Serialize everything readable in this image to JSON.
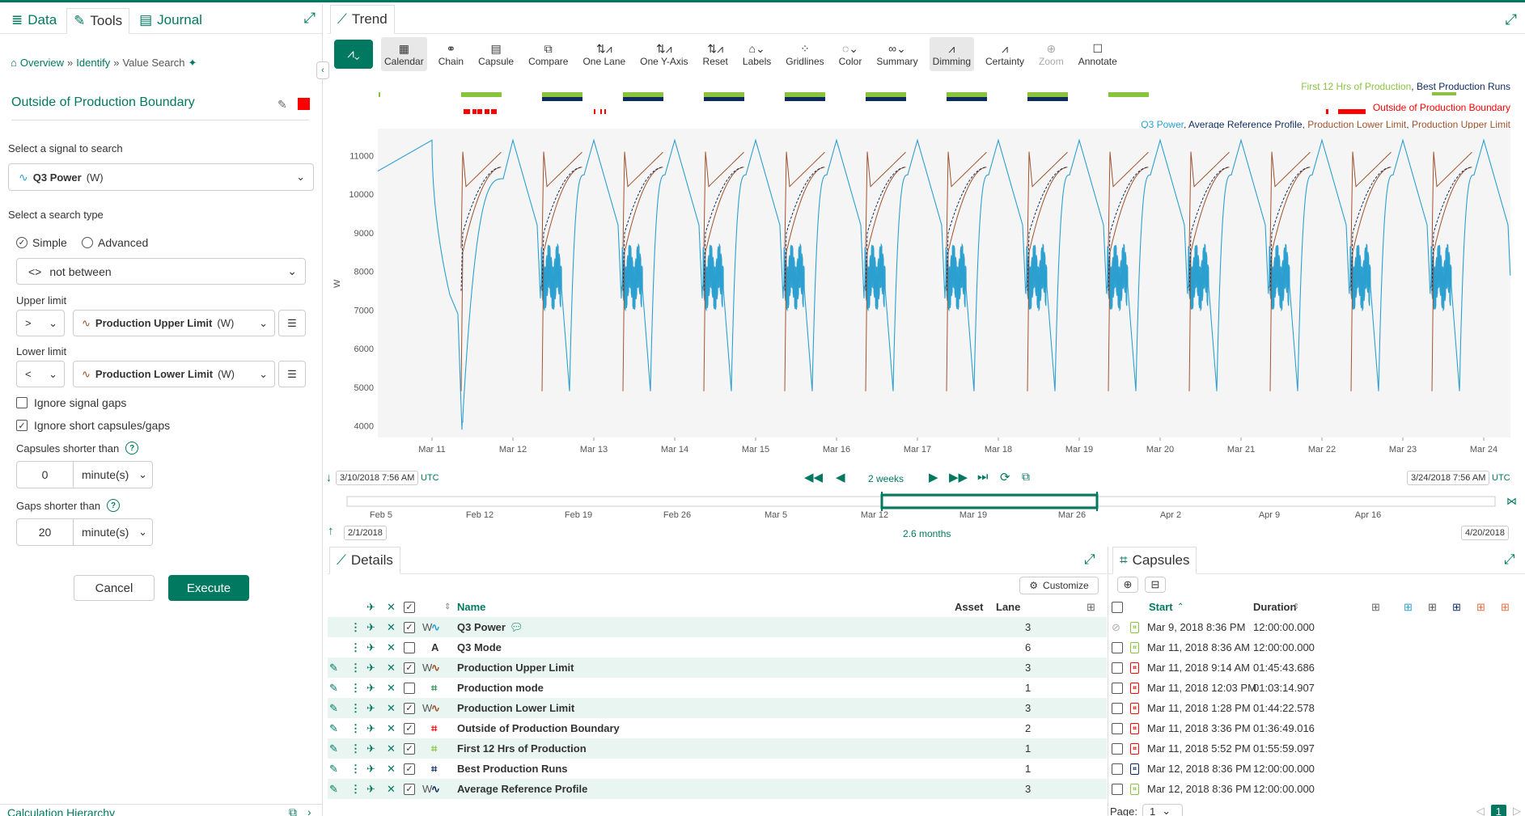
{
  "left_panel": {
    "tabs": [
      {
        "label": "Data",
        "icon": "database-icon"
      },
      {
        "label": "Tools",
        "icon": "wrench-icon"
      },
      {
        "label": "Journal",
        "icon": "journal-icon"
      }
    ],
    "breadcrumb": {
      "overview": "Overview",
      "identify": "Identify",
      "current": "Value Search"
    },
    "title": "Outside of Production Boundary",
    "title_color": "#ff0000",
    "signal_label": "Select a signal to search",
    "signal_name": "Q3 Power",
    "signal_unit": "(W)",
    "search_type_label": "Select a search type",
    "simple_label": "Simple",
    "advanced_label": "Advanced",
    "operator_symbol": "<>",
    "operator_text": "not between",
    "upper_label": "Upper limit",
    "upper_op": ">",
    "upper_signal": "Production Upper Limit",
    "upper_unit": "(W)",
    "lower_label": "Lower limit",
    "lower_op": "<",
    "lower_signal": "Production Lower Limit",
    "lower_unit": "(W)",
    "ignore_gaps": "Ignore signal gaps",
    "ignore_short": "Ignore short capsules/gaps",
    "caps_shorter": "Capsules shorter than",
    "caps_value": "0",
    "caps_unit": "minute(s)",
    "gaps_shorter": "Gaps shorter than",
    "gaps_value": "20",
    "gaps_unit": "minute(s)",
    "cancel": "Cancel",
    "execute": "Execute",
    "calc_hierarchy": "Calculation Hierarchy"
  },
  "trend": {
    "title": "Trend",
    "toolbar": [
      {
        "label": "Calendar",
        "icon": "calendar-icon",
        "state": "on"
      },
      {
        "label": "Chain",
        "icon": "chain-icon",
        "state": ""
      },
      {
        "label": "Capsule",
        "icon": "capsule-icon",
        "state": ""
      },
      {
        "label": "Compare",
        "icon": "compare-icon",
        "state": ""
      },
      {
        "label": "One Lane",
        "icon": "one-lane-icon",
        "state": ""
      },
      {
        "label": "One Y-Axis",
        "icon": "one-y-axis-icon",
        "state": ""
      },
      {
        "label": "Reset",
        "icon": "reset-icon",
        "state": ""
      },
      {
        "label": "Labels",
        "icon": "labels-icon",
        "state": ""
      },
      {
        "label": "Gridlines",
        "icon": "gridlines-icon",
        "state": ""
      },
      {
        "label": "Color",
        "icon": "color-icon",
        "state": ""
      },
      {
        "label": "Summary",
        "icon": "summary-icon",
        "state": ""
      },
      {
        "label": "Dimming",
        "icon": "dimming-icon",
        "state": "on"
      },
      {
        "label": "Certainty",
        "icon": "certainty-icon",
        "state": ""
      },
      {
        "label": "Zoom",
        "icon": "zoom-icon",
        "state": "dis"
      },
      {
        "label": "Annotate",
        "icon": "annotate-icon",
        "state": ""
      }
    ],
    "legend_caps_a": "First 12 Hrs of Production",
    "legend_caps_b": "Best Production Runs",
    "legend_caps_c": "Outside of Production Boundary",
    "legend_signals": [
      "Q3 Power",
      "Average Reference Profile",
      "Production Lower Limit",
      "Production Upper Limit"
    ],
    "start_time": "3/10/2018 7:56 AM",
    "end_time": "3/24/2018 7:56 AM",
    "tz": "UTC",
    "duration": "2 weeks",
    "nav_start": "2/1/2018",
    "nav_end": "4/20/2018",
    "nav_span": "2.6 months",
    "nav_ticks": [
      "Feb 5",
      "Feb 12",
      "Feb 19",
      "Feb 26",
      "Mar 5",
      "Mar 12",
      "Mar 19",
      "Mar 26",
      "Apr 2",
      "Apr 9",
      "Apr 16"
    ]
  },
  "colors": {
    "teal": "#007960",
    "signal_blue": "#2ba0d0",
    "navy": "#0d2a5e",
    "brown": "#a0522d",
    "green": "#8ac43f",
    "red": "#ff0000"
  },
  "chart_data": {
    "type": "line",
    "ylabel": "W",
    "ylim": [
      3700,
      11700
    ],
    "yticks": [
      "4000",
      "5000",
      "6000",
      "7000",
      "8000",
      "9000",
      "10000",
      "11000"
    ],
    "xticks": [
      "Mar 11",
      "Mar 12",
      "Mar 13",
      "Mar 14",
      "Mar 15",
      "Mar 16",
      "Mar 17",
      "Mar 18",
      "Mar 19",
      "Mar 20",
      "Mar 21",
      "Mar 22",
      "Mar 23",
      "Mar 24"
    ],
    "x_range_days": [
      10.33,
      24.33
    ],
    "series": [
      {
        "name": "Q3 Power",
        "cycle_pattern": "peak ~11400 at day start, decay to ~7200, oscillation 7300-8900, drop to ~5000, recover"
      },
      {
        "name": "Average Reference Profile"
      },
      {
        "name": "Production Lower Limit"
      },
      {
        "name": "Production Upper Limit"
      }
    ],
    "capsule_lanes": [
      {
        "name": "First 12 Hrs of Production",
        "color": "#8ac43f"
      },
      {
        "name": "Best Production Runs",
        "color": "#0d2a5e"
      },
      {
        "name": "Outside of Production Boundary",
        "color": "#ff0000"
      }
    ]
  },
  "details": {
    "title": "Details",
    "customize": "Customize",
    "col_name": "Name",
    "col_asset": "Asset",
    "col_lane": "Lane",
    "rows": [
      {
        "unit": "W",
        "name": "Q3 Power",
        "lane": "3",
        "type": "signal",
        "color": "#2ba0d0",
        "checked": true,
        "edit": false
      },
      {
        "unit": "",
        "name": "Q3 Mode",
        "lane": "6",
        "type": "string",
        "color": "#333",
        "checked": false,
        "edit": false
      },
      {
        "unit": "W",
        "name": "Production Upper Limit",
        "lane": "3",
        "type": "signal",
        "color": "#a0522d",
        "checked": true,
        "edit": true
      },
      {
        "unit": "",
        "name": "Production mode",
        "lane": "1",
        "type": "condition",
        "color": "#2e8b57",
        "checked": false,
        "edit": true
      },
      {
        "unit": "W",
        "name": "Production Lower Limit",
        "lane": "3",
        "type": "signal",
        "color": "#a0522d",
        "checked": true,
        "edit": true
      },
      {
        "unit": "",
        "name": "Outside of Production Boundary",
        "lane": "2",
        "type": "condition",
        "color": "#ff0000",
        "checked": true,
        "edit": true
      },
      {
        "unit": "",
        "name": "First 12 Hrs of Production",
        "lane": "1",
        "type": "condition",
        "color": "#8ac43f",
        "checked": true,
        "edit": true
      },
      {
        "unit": "",
        "name": "Best Production Runs",
        "lane": "1",
        "type": "condition",
        "color": "#0d2a5e",
        "checked": true,
        "edit": true
      },
      {
        "unit": "W",
        "name": "Average Reference Profile",
        "lane": "3",
        "type": "signal",
        "color": "#0d2a5e",
        "checked": true,
        "edit": true
      }
    ]
  },
  "capsules": {
    "title": "Capsules",
    "col_start": "Start",
    "col_duration": "Duration",
    "rows": [
      {
        "start": "Mar 9, 2018 8:36 PM",
        "duration": "12:00:00.000",
        "color": "#8ac43f",
        "disabled": true
      },
      {
        "start": "Mar 11, 2018 8:36 AM",
        "duration": "12:00:00.000",
        "color": "#8ac43f",
        "disabled": false
      },
      {
        "start": "Mar 11, 2018 9:14 AM",
        "duration": "01:45:43.686",
        "color": "#ff0000",
        "disabled": false
      },
      {
        "start": "Mar 11, 2018 12:03 PM",
        "duration": "01:03:14.907",
        "color": "#ff0000",
        "disabled": false
      },
      {
        "start": "Mar 11, 2018 1:28 PM",
        "duration": "01:44:22.578",
        "color": "#ff0000",
        "disabled": false
      },
      {
        "start": "Mar 11, 2018 3:36 PM",
        "duration": "01:36:49.016",
        "color": "#ff0000",
        "disabled": false
      },
      {
        "start": "Mar 11, 2018 5:52 PM",
        "duration": "01:55:59.097",
        "color": "#ff0000",
        "disabled": false
      },
      {
        "start": "Mar 12, 2018 8:36 PM",
        "duration": "12:00:00.000",
        "color": "#0d2a5e",
        "disabled": false
      },
      {
        "start": "Mar 12, 2018 8:36 PM",
        "duration": "12:00:00.000",
        "color": "#8ac43f",
        "disabled": false
      }
    ],
    "page_label": "Page:",
    "page_value": "1",
    "page_current": "1"
  }
}
